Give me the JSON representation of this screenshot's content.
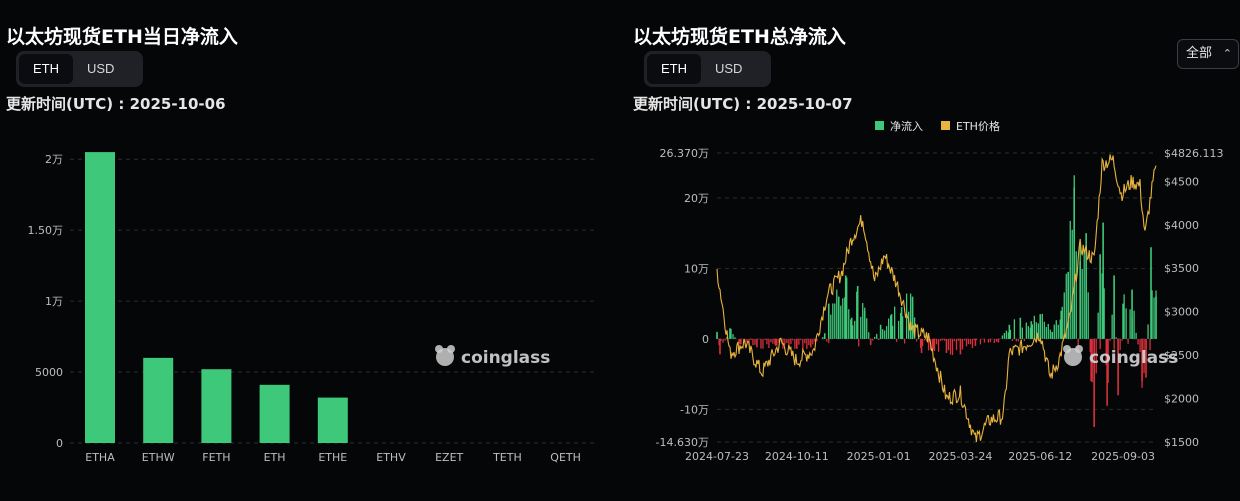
{
  "left": {
    "title": "以太坊现货ETH当日净流入",
    "toggle": [
      "ETH",
      "USD"
    ],
    "updated": "更新时间(UTC) : 2025-10-06",
    "watermark": "coinglass"
  },
  "right": {
    "title": "以太坊现货ETH总净流入",
    "toggle": [
      "ETH",
      "USD"
    ],
    "updated": "更新时间(UTC) : 2025-10-07",
    "range_select": "全部",
    "legend": [
      "净流入",
      "ETH价格"
    ],
    "watermark": "coinglass"
  },
  "colors": {
    "inflow": "#3ec97a",
    "outflow": "#d8303a",
    "price": "#e8b33e",
    "grid": "#2a2d33",
    "text": "#bdbdbd"
  },
  "chart_data": [
    {
      "type": "bar",
      "title": "以太坊现货ETH当日净流入",
      "categories": [
        "ETHA",
        "ETHW",
        "FETH",
        "ETH",
        "ETHE",
        "ETHV",
        "EZET",
        "TETH",
        "QETH"
      ],
      "values": [
        20500,
        6000,
        5200,
        4100,
        3200,
        0,
        0,
        0,
        0
      ],
      "y_ticks": [
        0,
        5000,
        10000,
        15000,
        20000
      ],
      "y_tick_labels": [
        "0",
        "5000",
        "1万",
        "1.50万",
        "2万"
      ],
      "ylim": [
        0,
        21000
      ],
      "grid": true
    },
    {
      "type": "bar+line",
      "title": "以太坊现货ETH总净流入",
      "legend": [
        "净流入",
        "ETH价格"
      ],
      "legend_position": "top-center",
      "x_tick_labels": [
        "2024-07-23",
        "2024-10-11",
        "2025-01-01",
        "2025-03-24",
        "2025-06-12",
        "2025-09-03"
      ],
      "x_range": [
        "2024-07-23",
        "2025-10-06"
      ],
      "left_axis": {
        "ylim": [
          -146300,
          263700
        ],
        "tick_labels": [
          "26.370万",
          "20万",
          "10万",
          "0",
          "-10万",
          "-14.630万"
        ]
      },
      "right_axis": {
        "ylim": [
          1500,
          4826.113
        ],
        "tick_labels": [
          "$4826.113",
          "$4500",
          "$4000",
          "$3500",
          "$3000",
          "$2500",
          "$2000",
          "$1500"
        ]
      },
      "price_points": [
        [
          "2024-07-23",
          3480
        ],
        [
          "2024-08-05",
          2520
        ],
        [
          "2024-08-20",
          2650
        ],
        [
          "2024-09-06",
          2300
        ],
        [
          "2024-09-25",
          2650
        ],
        [
          "2024-10-11",
          2430
        ],
        [
          "2024-10-28",
          2560
        ],
        [
          "2024-11-10",
          3180
        ],
        [
          "2024-11-25",
          3450
        ],
        [
          "2024-12-05",
          3850
        ],
        [
          "2024-12-16",
          4070
        ],
        [
          "2024-12-28",
          3350
        ],
        [
          "2025-01-07",
          3650
        ],
        [
          "2025-01-20",
          3300
        ],
        [
          "2025-02-03",
          2800
        ],
        [
          "2025-02-20",
          2700
        ],
        [
          "2025-03-10",
          2000
        ],
        [
          "2025-03-24",
          2060
        ],
        [
          "2025-04-08",
          1520
        ],
        [
          "2025-04-22",
          1750
        ],
        [
          "2025-05-06",
          1800
        ],
        [
          "2025-05-12",
          2520
        ],
        [
          "2025-05-26",
          2600
        ],
        [
          "2025-06-12",
          2750
        ],
        [
          "2025-06-22",
          2250
        ],
        [
          "2025-07-01",
          2450
        ],
        [
          "2025-07-12",
          2950
        ],
        [
          "2025-07-22",
          3750
        ],
        [
          "2025-08-05",
          3600
        ],
        [
          "2025-08-13",
          4700
        ],
        [
          "2025-08-24",
          4750
        ],
        [
          "2025-09-01",
          4350
        ],
        [
          "2025-09-12",
          4500
        ],
        [
          "2025-09-20",
          4450
        ],
        [
          "2025-09-25",
          3880
        ],
        [
          "2025-10-01",
          4350
        ],
        [
          "2025-10-06",
          4680
        ]
      ],
      "flow_points": [
        [
          "2024-07-23",
          10000
        ],
        [
          "2024-07-26",
          -22000
        ],
        [
          "2024-08-05",
          15000
        ],
        [
          "2024-08-15",
          -8000
        ],
        [
          "2024-09-01",
          -12000
        ],
        [
          "2024-09-20",
          -10000
        ],
        [
          "2024-10-11",
          -14000
        ],
        [
          "2024-10-25",
          -12000
        ],
        [
          "2024-11-08",
          8000
        ],
        [
          "2024-11-12",
          50000
        ],
        [
          "2024-11-22",
          60000
        ],
        [
          "2024-11-29",
          90000
        ],
        [
          "2024-12-05",
          30000
        ],
        [
          "2024-12-11",
          75000
        ],
        [
          "2024-12-18",
          40000
        ],
        [
          "2024-12-24",
          -8000
        ],
        [
          "2025-01-03",
          20000
        ],
        [
          "2025-01-14",
          35000
        ],
        [
          "2025-01-24",
          45000
        ],
        [
          "2025-02-04",
          60000
        ],
        [
          "2025-02-13",
          -20000
        ],
        [
          "2025-02-25",
          -15000
        ],
        [
          "2025-03-10",
          -20000
        ],
        [
          "2025-03-24",
          -22000
        ],
        [
          "2025-04-08",
          -10000
        ],
        [
          "2025-05-01",
          -5000
        ],
        [
          "2025-05-12",
          20000
        ],
        [
          "2025-05-23",
          30000
        ],
        [
          "2025-06-03",
          25000
        ],
        [
          "2025-06-12",
          35000
        ],
        [
          "2025-06-24",
          10000
        ],
        [
          "2025-07-03",
          40000
        ],
        [
          "2025-07-10",
          95000
        ],
        [
          "2025-07-16",
          215000
        ],
        [
          "2025-07-22",
          110000
        ],
        [
          "2025-07-28",
          150000
        ],
        [
          "2025-08-02",
          -60000
        ],
        [
          "2025-08-05",
          -125000
        ],
        [
          "2025-08-11",
          120000
        ],
        [
          "2025-08-14",
          165000
        ],
        [
          "2025-08-18",
          -95000
        ],
        [
          "2025-08-25",
          90000
        ],
        [
          "2025-08-29",
          -80000
        ],
        [
          "2025-09-03",
          50000
        ],
        [
          "2025-09-12",
          70000
        ],
        [
          "2025-09-22",
          -60000
        ],
        [
          "2025-09-26",
          -55000
        ],
        [
          "2025-10-01",
          130000
        ],
        [
          "2025-10-06",
          60000
        ]
      ],
      "grid": true
    }
  ]
}
